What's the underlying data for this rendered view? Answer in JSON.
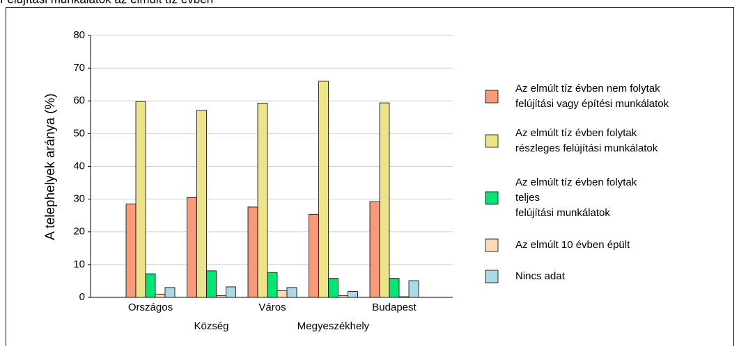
{
  "chart_data": {
    "type": "bar",
    "title": "Felújítási munkálatok az elmúlt tíz évben",
    "y_label": "A telephelyek aránya (%)",
    "categories": [
      "Országos",
      "Község",
      "Város",
      "Megyeszékhely",
      "Budapest"
    ],
    "series": [
      {
        "name": "Az elmúlt tíz évben nem folytak\nfelújítási vagy építési munkálatok",
        "color": "#f89a78",
        "values": [
          28.5,
          30.5,
          27.6,
          25.4,
          29.2
        ]
      },
      {
        "name": "Az elmúlt tíz évben folytak\nrészleges felújítási munkálatok",
        "color": "#ece38a",
        "values": [
          59.8,
          57.1,
          59.3,
          66.0,
          59.4
        ]
      },
      {
        "name": "Az elmúlt tíz évben folytak\nteljes\nfelújítási munkálatok",
        "color": "#00e676",
        "values": [
          7.2,
          8.1,
          7.6,
          5.8,
          5.8
        ]
      },
      {
        "name": "Az elmúlt 10 évben épült",
        "color": "#fdd9b5",
        "values": [
          1.0,
          0.5,
          2.0,
          0.5,
          0.2
        ]
      },
      {
        "name": "Nincs adat",
        "color": "#add8e6",
        "values": [
          3.0,
          3.2,
          3.0,
          1.8,
          5.1
        ]
      }
    ],
    "ylim": [
      0,
      80
    ],
    "yticks": [
      0,
      10,
      20,
      30,
      40,
      50,
      60,
      70,
      80
    ],
    "grid": true
  }
}
